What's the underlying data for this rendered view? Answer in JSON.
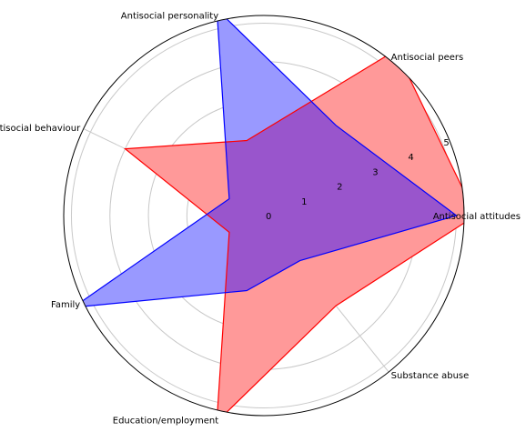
{
  "chart_data": {
    "type": "radar",
    "categories": [
      "Antisocial attitudes",
      "Antisocial peers",
      "Antisocial personality",
      "History of antisocial behaviour",
      "Family",
      "Education/employment",
      "Substance abuse"
    ],
    "series": [
      {
        "color": "#ff0000",
        "fill": "#ff9999",
        "values": [
          5.5,
          5.5,
          2.0,
          4.0,
          1.0,
          5.5,
          3.0
        ]
      },
      {
        "color": "#0000ff",
        "fill": "#9999ff",
        "values": [
          5.0,
          3.0,
          5.5,
          1.0,
          5.5,
          2.0,
          1.5
        ]
      }
    ],
    "radial_ticks": [
      "0",
      "1",
      "2",
      "3",
      "4",
      "5"
    ],
    "rlim": [
      0,
      5.2
    ],
    "grid": true,
    "overlap_color": "#9955cc"
  }
}
